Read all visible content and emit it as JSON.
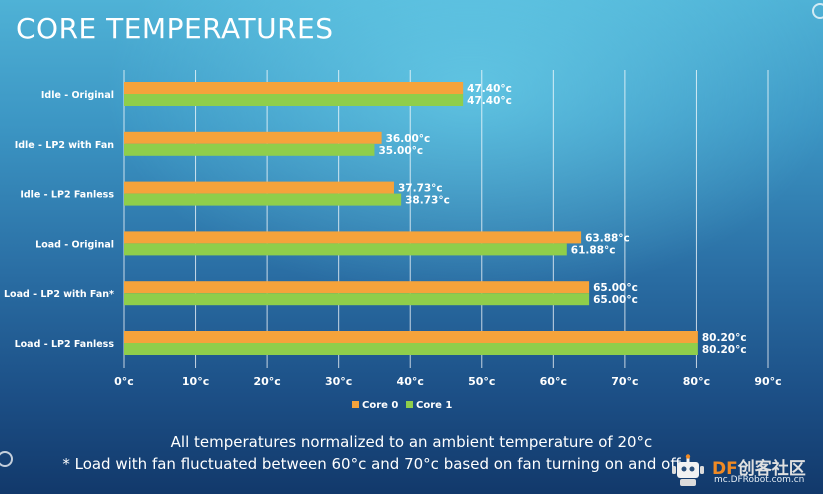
{
  "slide": {
    "title": "CORE TEMPERATURES"
  },
  "chart_data": {
    "type": "bar",
    "orientation": "horizontal",
    "categories": [
      "Idle - Original",
      "Idle - LP2 with Fan",
      "Idle - LP2 Fanless",
      "Load - Original",
      "Load - LP2 with Fan*",
      "Load - LP2 Fanless"
    ],
    "series": [
      {
        "name": "Core 0",
        "color": "#f5a33b",
        "values": [
          47.4,
          36.0,
          37.73,
          63.88,
          65.0,
          80.2
        ],
        "labels": [
          "47.40°c",
          "36.00°c",
          "37.73°c",
          "63.88°c",
          "65.00°c",
          "80.20°c"
        ]
      },
      {
        "name": "Core 1",
        "color": "#8fce4b",
        "values": [
          47.4,
          35.0,
          38.73,
          61.88,
          65.0,
          80.2
        ],
        "labels": [
          "47.40°c",
          "35.00°c",
          "38.73°c",
          "61.88°c",
          "65.00°c",
          "80.20°c"
        ]
      }
    ],
    "xlim": [
      0,
      90
    ],
    "xticks": [
      0,
      10,
      20,
      30,
      40,
      50,
      60,
      70,
      80,
      90
    ],
    "xtick_labels": [
      "0°c",
      "10°c",
      "20°c",
      "30°c",
      "40°c",
      "50°c",
      "60°c",
      "70°c",
      "80°c",
      "90°c"
    ],
    "grid": true,
    "legend_position": "bottom"
  },
  "footnotes": {
    "line1": "All temperatures normalized to an ambient temperature of 20°c",
    "line2": "* Load with fan fluctuated between 60°c and 70°c based on fan turning on and off"
  },
  "watermark": {
    "brand_df": "DF",
    "brand_cn": "创客社区",
    "site": "mc.DFRobot.com.cn",
    "icon": "robot-logo-icon"
  }
}
